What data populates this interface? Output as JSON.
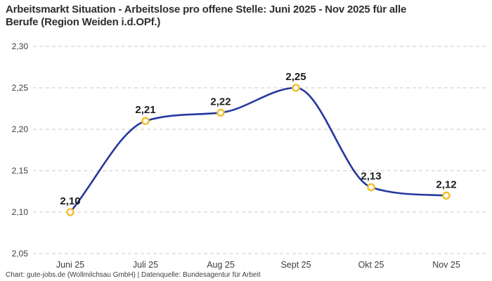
{
  "title": {
    "line1": "Arbeitsmarkt Situation - Arbeitslose pro offene Stelle: Juni 2025 - Nov 2025 für alle",
    "line2": "Berufe (Region Weiden i.d.OPf.)"
  },
  "footer": "Chart: gute-jobs.de (Wollmilchsau GmbH) | Datenquelle: Bundesagentur für Arbeit",
  "chart_data": {
    "type": "line",
    "title": "Arbeitsmarkt Situation - Arbeitslose pro offene Stelle: Juni 2025 - Nov 2025 für alle Berufe (Region Weiden i.d.OPf.)",
    "categories": [
      "Juni 25",
      "Juli 25",
      "Aug 25",
      "Sept 25",
      "Okt 25",
      "Nov 25"
    ],
    "values": [
      2.1,
      2.21,
      2.22,
      2.25,
      2.13,
      2.12
    ],
    "point_labels": [
      "2,10",
      "2,21",
      "2,22",
      "2,25",
      "2,13",
      "2,12"
    ],
    "xlabel": "",
    "ylabel": "",
    "ylim": [
      2.05,
      2.3
    ],
    "y_ticks": [
      {
        "value": 2.05,
        "label": "2,05"
      },
      {
        "value": 2.1,
        "label": "2,10"
      },
      {
        "value": 2.15,
        "label": "2,15"
      },
      {
        "value": 2.2,
        "label": "2,20"
      },
      {
        "value": 2.25,
        "label": "2,25"
      },
      {
        "value": 2.3,
        "label": "2,30"
      }
    ],
    "grid": "horizontal-dashed",
    "legend": "none",
    "colors": {
      "line": "#24389f",
      "marker_stroke": "#f2c235",
      "marker_fill": "#ffffff",
      "grid": "#c9c9c9",
      "title_text": "#2e2e2e",
      "axis_text": "#3d3d3d",
      "point_label_text": "#1c1c1c",
      "footer_text": "#3d3d3d",
      "background": "#ffffff"
    }
  }
}
